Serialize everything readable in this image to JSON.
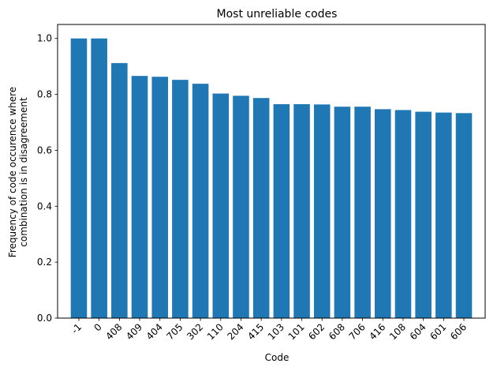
{
  "chart_data": {
    "type": "bar",
    "title": "Most unreliable codes",
    "xlabel": "Code",
    "ylabel_lines": [
      "Frequency of code occurence where",
      "combination is in disagreement"
    ],
    "categories": [
      "-1",
      "0",
      "408",
      "409",
      "404",
      "705",
      "302",
      "110",
      "204",
      "415",
      "103",
      "101",
      "602",
      "608",
      "706",
      "416",
      "108",
      "604",
      "601",
      "606"
    ],
    "values": [
      1.0,
      1.0,
      0.912,
      0.866,
      0.863,
      0.852,
      0.838,
      0.803,
      0.795,
      0.787,
      0.765,
      0.765,
      0.764,
      0.756,
      0.756,
      0.747,
      0.744,
      0.738,
      0.735,
      0.733
    ],
    "ylim": [
      0,
      1.05
    ],
    "yticks": [
      0.0,
      0.2,
      0.4,
      0.6,
      0.8,
      1.0
    ],
    "ytick_labels": [
      "0.0",
      "0.2",
      "0.4",
      "0.6",
      "0.8",
      "1.0"
    ],
    "xtick_rotation": 45,
    "grid": false,
    "bar_color": "#1f77b4"
  }
}
